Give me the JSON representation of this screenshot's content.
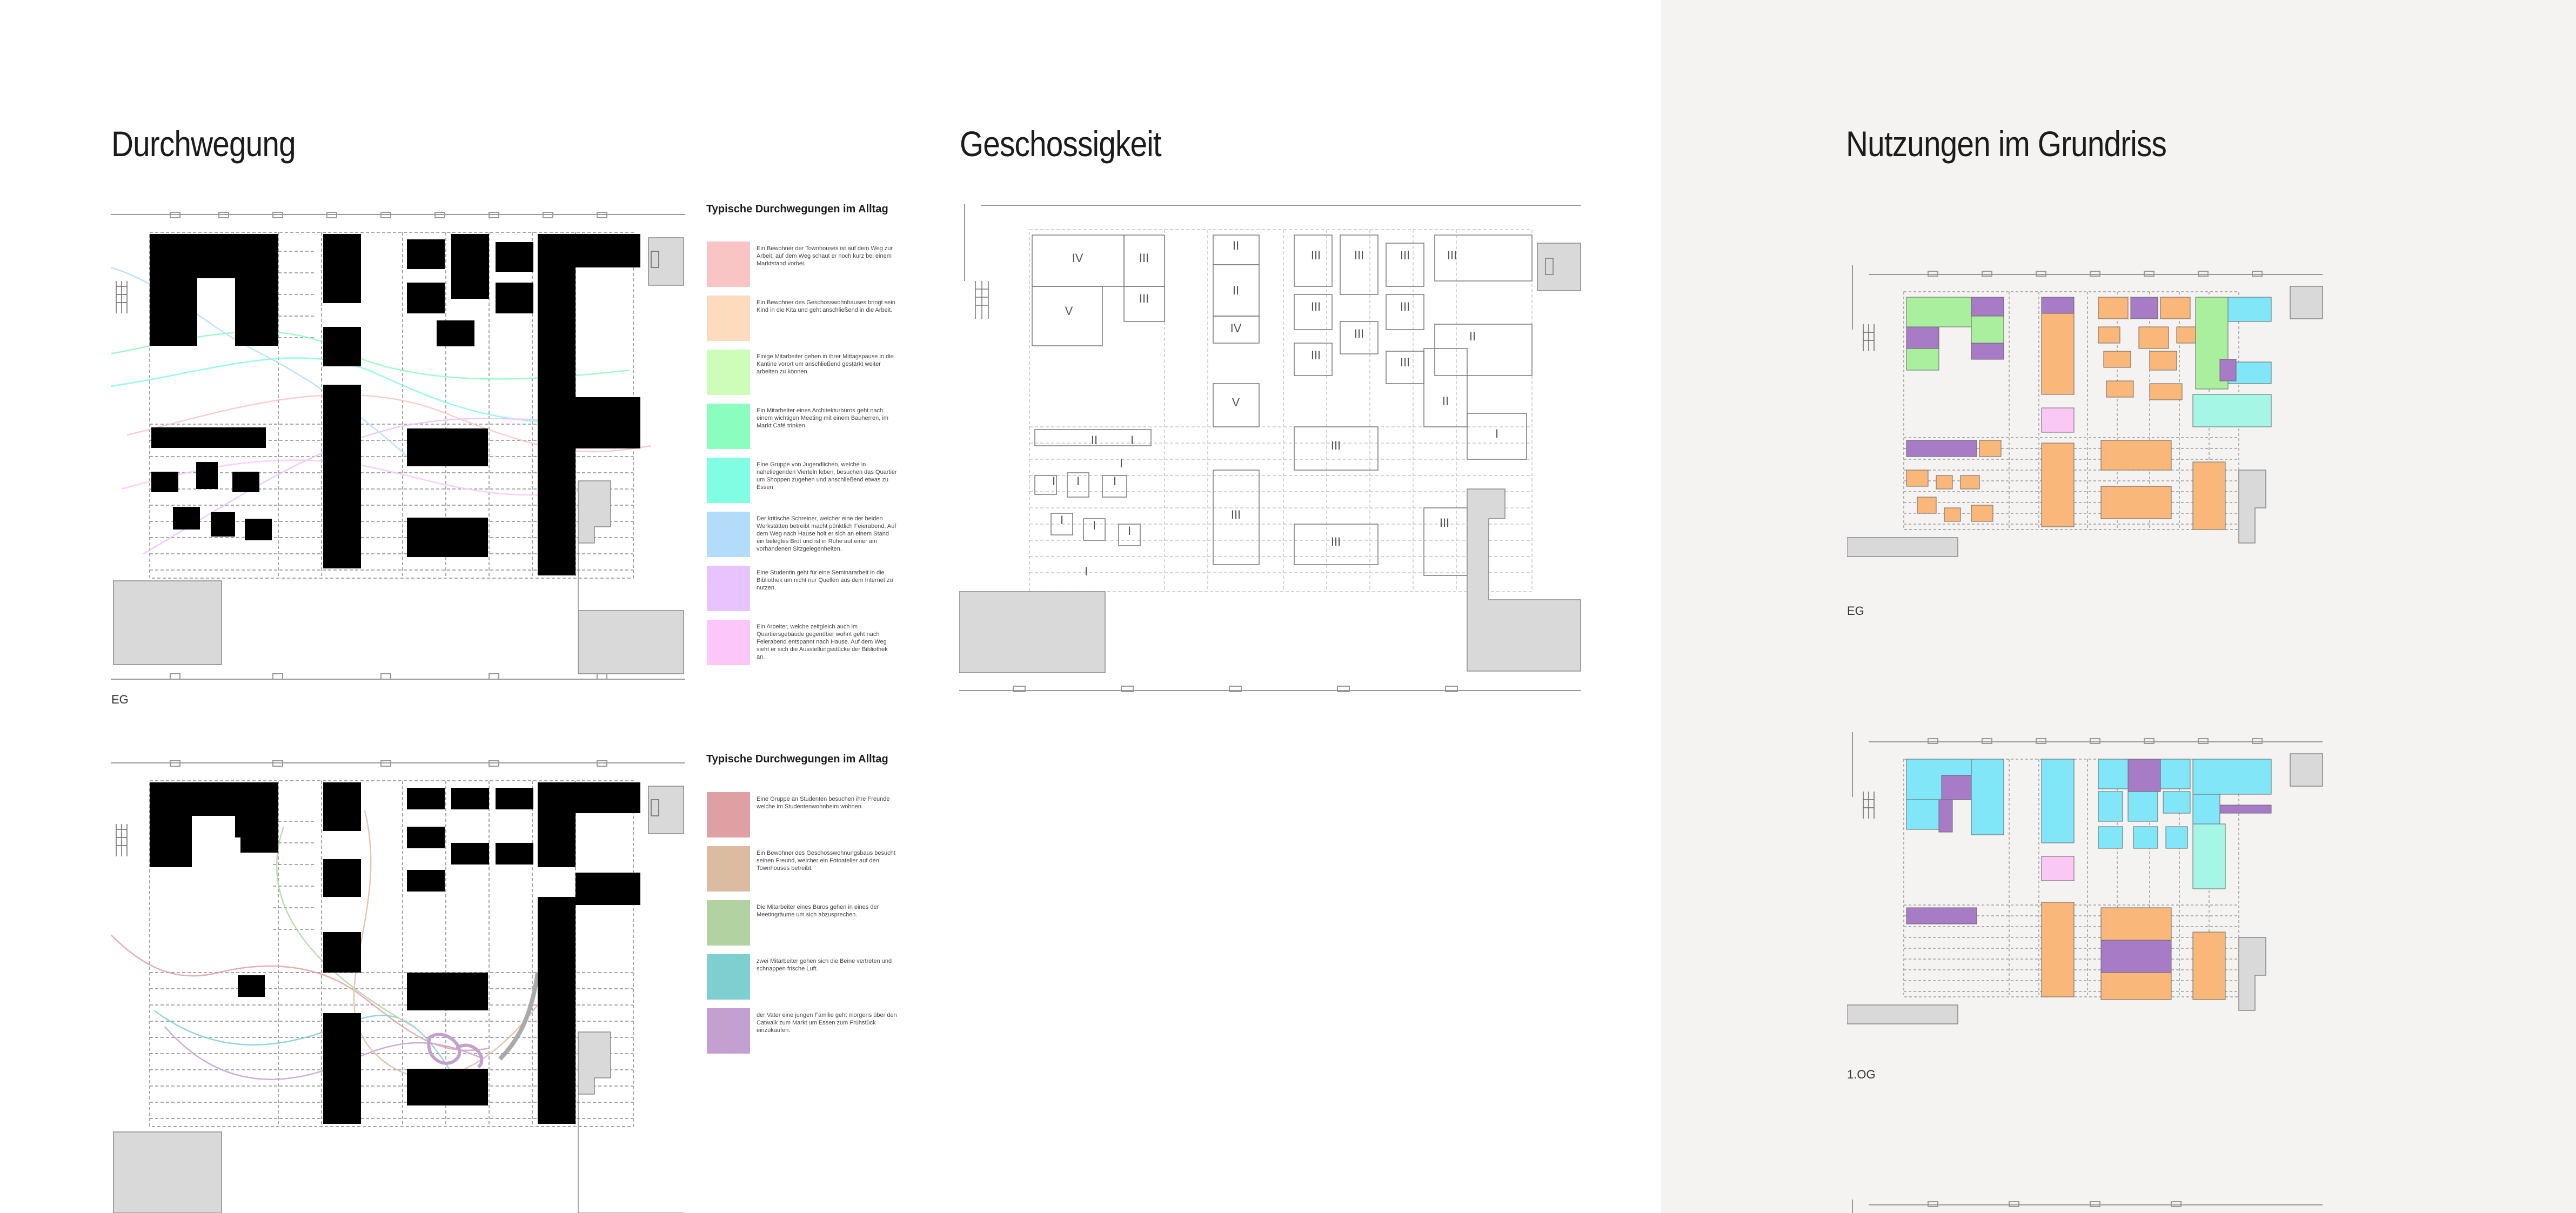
{
  "sections": {
    "durchwegung": "Durchwegung",
    "geschossigkeit": "Geschossigkeit",
    "nutzungen": "Nutzungen im Grundriss"
  },
  "legend_a": {
    "title": "Typische Durchwegungen im Alltag",
    "items": [
      {
        "color": "#f9c5c4",
        "text": "Ein Bewohner der Townhouses ist auf dem Weg zur Arbeit, auf dem Weg schaut er noch kurz bei einem Marktstand vorbei."
      },
      {
        "color": "#fddcbd",
        "text": "Ein Bewohner des Geschosswohnhauses bringt sein Kind in die Kita und geht anschließend in die Arbeit."
      },
      {
        "color": "#cdfdb8",
        "text": "Einige Mitarbeiter gehen in ihrer Mittagspause in die Kantine vorort um anschließend gestärkt weiter arbeiten zu können."
      },
      {
        "color": "#8bfdbe",
        "text": "Ein Mitarbeiter eines Architekturbüros geht nach einem wichtigen Meeting mit einem Bauherren, im Markt Café trinken."
      },
      {
        "color": "#80fde3",
        "text": "Eine Gruppe von Jugendlichen, welche in naheliegenden Vierteln leben, besuchen das Quartier um Shoppen zugehen und anschließend etwas zu Essen"
      },
      {
        "color": "#b3dcfb",
        "text": "Der kritische Schreiner, welcher eine der beiden Werkstätten betreibt macht pünktlich Feierabend. Auf dem Weg nach Hause holt er sich an einem Stand ein belegtes Brot und ist in Ruhe auf einer am vorhandenen Sitzgelegenheiten."
      },
      {
        "color": "#e9c3fd",
        "text": "Eine Studentin geht für eine Seminararbeit in die Bibliothek um nicht nur Quellen aus dem Internet zu nutzen."
      },
      {
        "color": "#fcc6f9",
        "text": "Ein Arbeiter, welche zeitgleich auch im Quartiersgebäude gegenüber wohnt geht nach Feierabend entspannt nach Hause. Auf dem Weg sieht er sich die Ausstellungsstücke der Bibliothek an."
      }
    ]
  },
  "legend_b": {
    "title": "Typische Durchwegungen im Alltag",
    "items": [
      {
        "color": "#dfa0a3",
        "text": "Eine Gruppe an Studenten besuchen ihre Freunde welche im Studentenwohnheim wohnen."
      },
      {
        "color": "#dcbca0",
        "text": "Ein Bewohner des Geschosswohnungsbaus besucht seinen Freund, welcher ein Fotoatelier auf den Townhouses betreibt."
      },
      {
        "color": "#b2d2a2",
        "text": "Die Mitarbeiter eines Büros gehen in eines der Meetingräume um sich abzusprechen."
      },
      {
        "color": "#7ecfcf",
        "text": "zwei Mitarbeiter gehen sich die Beine vertreten und schnappen frische Luft."
      },
      {
        "color": "#c3a0d0",
        "text": "der Vater eine jungen Familie geht morgens über den Catwalk zum Markt um Essen zum Frühstück einzukaufen."
      }
    ]
  },
  "floor_labels": {
    "plan_a": "EG",
    "nutz_1": "EG",
    "nutz_2": "1.OG"
  },
  "storeys": [
    "IV",
    "III",
    "V",
    "II",
    "II",
    "IV",
    "V",
    "III",
    "III",
    "III",
    "III",
    "III",
    "III",
    "III",
    "III",
    "III",
    "III",
    "II",
    "II",
    "I",
    "II",
    "I",
    "I",
    "I",
    "I",
    "I",
    "I",
    "I",
    "I",
    "I",
    "III",
    "III",
    "III",
    "III"
  ],
  "use_colors": {
    "orange": "#f9b77a",
    "purple": "#a77bc6",
    "green": "#a9ef9e",
    "cyan": "#81e6f7",
    "mint": "#a6f6e6",
    "pink": "#fbc8f5"
  }
}
